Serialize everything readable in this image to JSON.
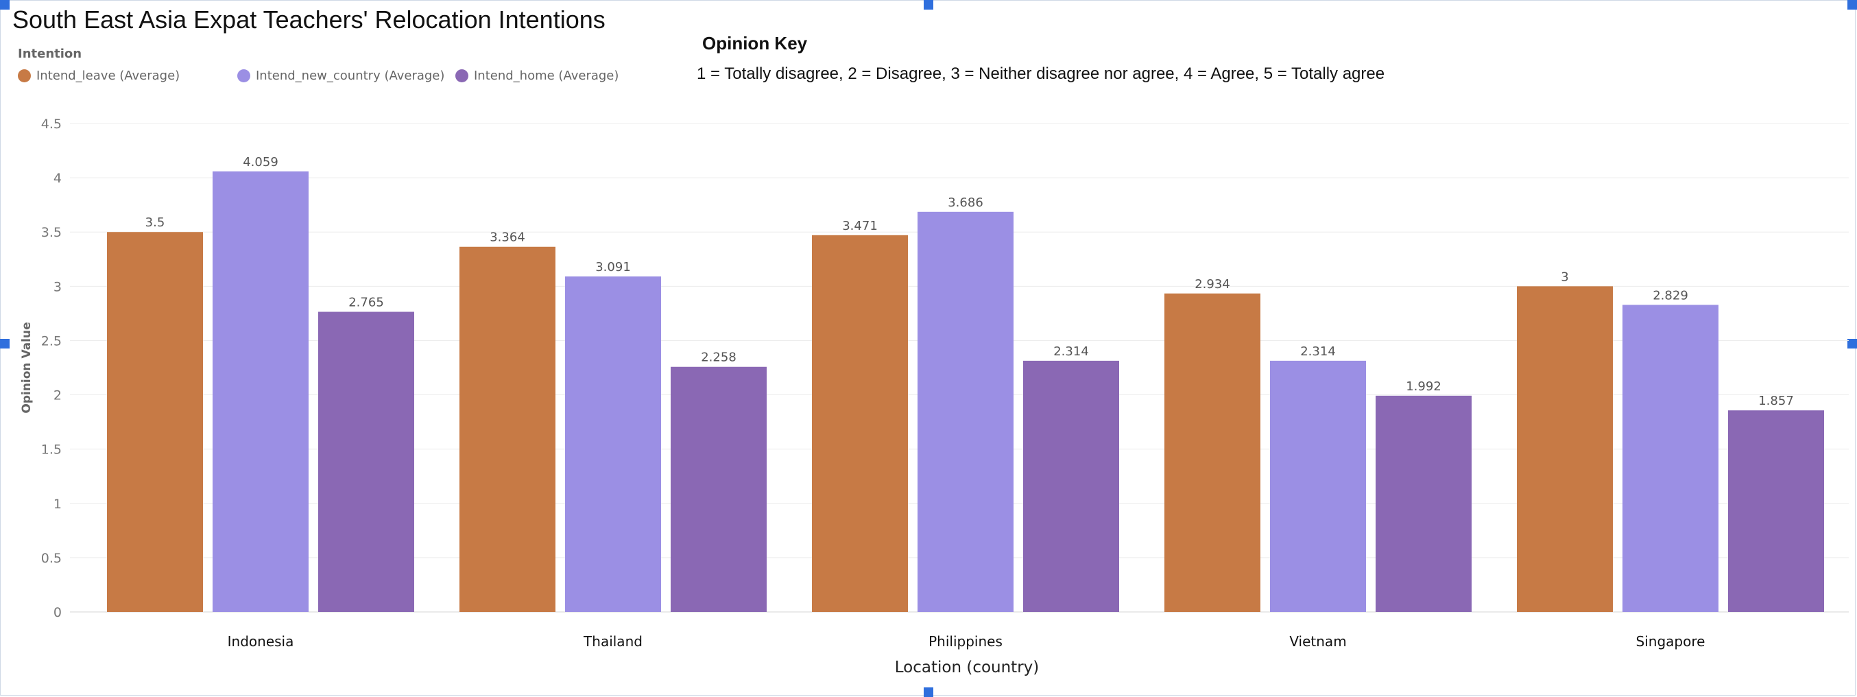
{
  "chart_data": {
    "type": "bar",
    "title": "South East Asia Expat Teachers' Relocation Intentions",
    "legend_title": "Intention",
    "xlabel": "Location (country)",
    "ylabel": "Opinion Value",
    "ylim": [
      0,
      4.5
    ],
    "yticks": [
      "0",
      "0.5",
      "1",
      "1.5",
      "2",
      "2.5",
      "3",
      "3.5",
      "4",
      "4.5"
    ],
    "grid": true,
    "legend_position": "top-left",
    "categories": [
      "Indonesia",
      "Thailand",
      "Philippines",
      "Vietnam",
      "Singapore"
    ],
    "series": [
      {
        "name": "Intend_leave (Average)",
        "color": "#c77a45",
        "values": [
          3.5,
          3.364,
          3.471,
          2.934,
          3
        ],
        "labels": [
          "3.5",
          "3.364",
          "3.471",
          "2.934",
          "3"
        ]
      },
      {
        "name": "Intend_new_country (Average)",
        "color": "#9b8fe4",
        "values": [
          4.059,
          3.091,
          3.686,
          2.314,
          2.829
        ],
        "labels": [
          "4.059",
          "3.091",
          "3.686",
          "2.314",
          "2.829"
        ]
      },
      {
        "name": "Intend_home (Average)",
        "color": "#8a68b4",
        "values": [
          2.765,
          2.258,
          2.314,
          1.992,
          1.857
        ],
        "labels": [
          "2.765",
          "2.258",
          "2.314",
          "1.992",
          "1.857"
        ]
      }
    ]
  },
  "opinion_key": {
    "title": "Opinion Key",
    "text": "1 = Totally disagree, 2 = Disagree, 3 = Neither disagree nor agree, 4 = Agree, 5 = Totally agree"
  }
}
